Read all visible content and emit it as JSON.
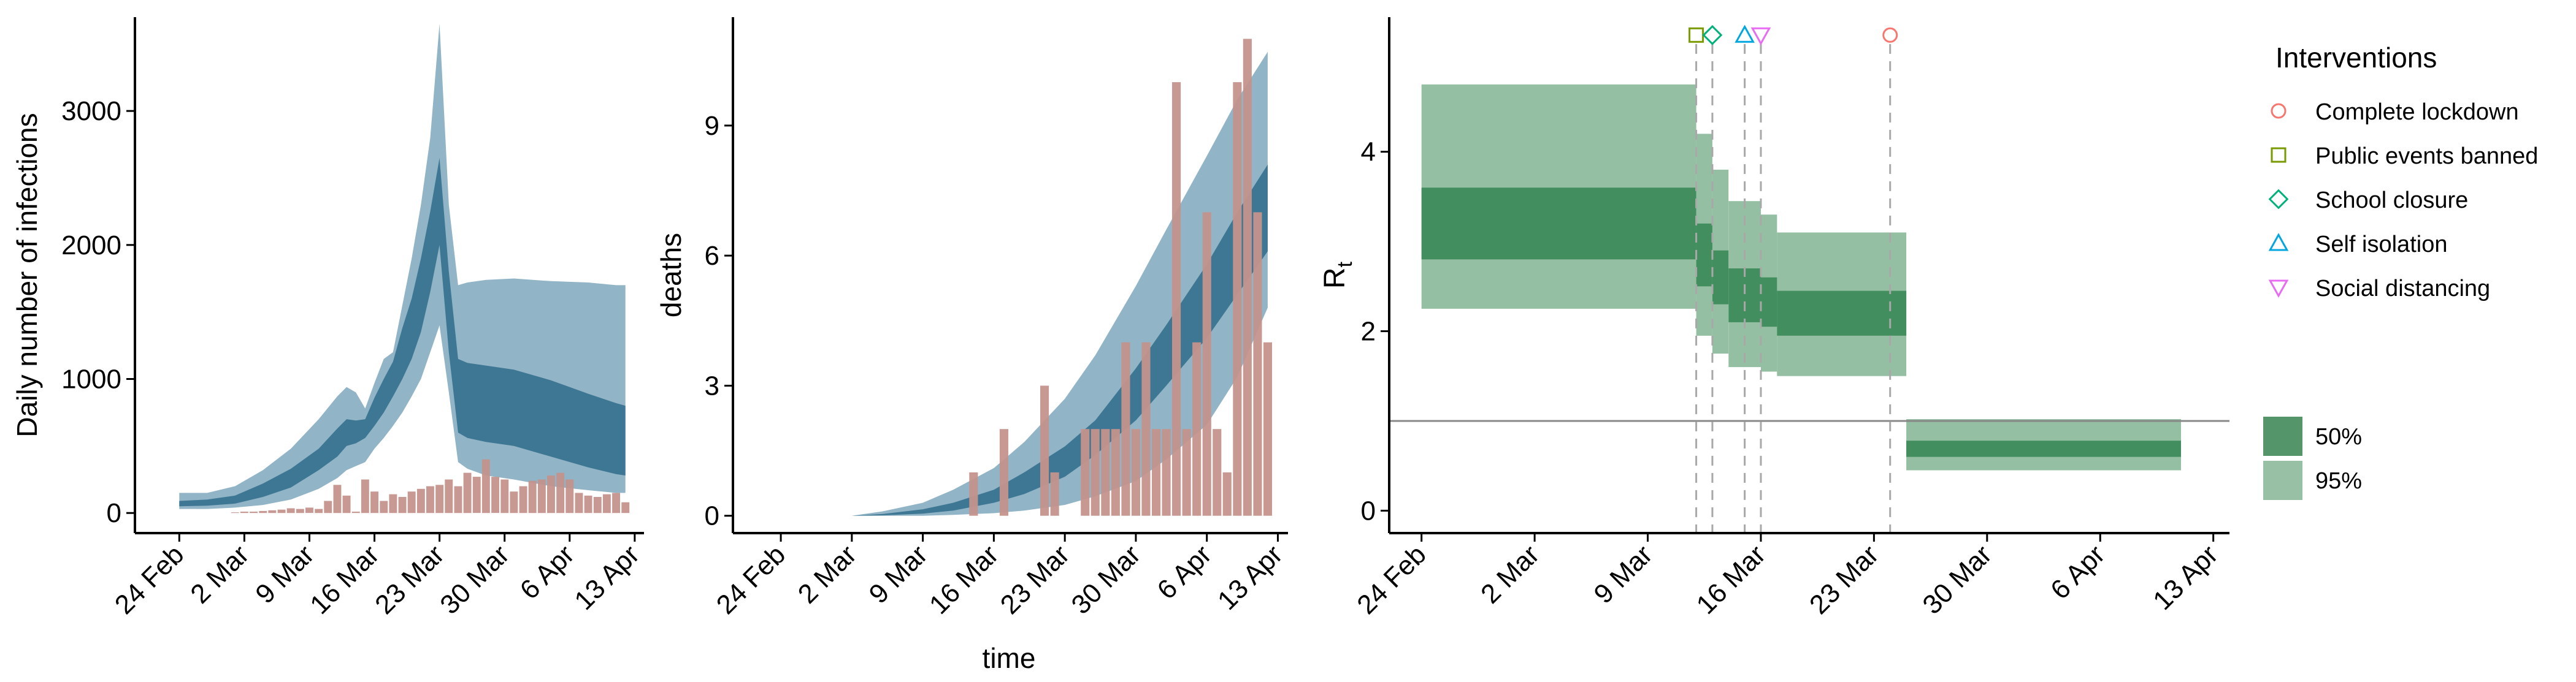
{
  "chart_data": [
    {
      "type": "area",
      "ylabel": "Daily number of infections",
      "xlim": [
        "2020-02-22",
        "2020-04-14"
      ],
      "ylim": [
        -150,
        3700
      ],
      "xticks": [
        {
          "date": "2020-02-24",
          "label": "24 Feb"
        },
        {
          "date": "2020-03-02",
          "label": "2 Mar"
        },
        {
          "date": "2020-03-09",
          "label": "9 Mar"
        },
        {
          "date": "2020-03-16",
          "label": "16 Mar"
        },
        {
          "date": "2020-03-23",
          "label": "23 Mar"
        },
        {
          "date": "2020-03-30",
          "label": "30 Mar"
        },
        {
          "date": "2020-04-06",
          "label": "6 Apr"
        },
        {
          "date": "2020-04-13",
          "label": "13 Apr"
        }
      ],
      "yticks": [
        0,
        1000,
        2000,
        3000
      ],
      "colors": {
        "band95": "#91b4c6",
        "band50": "#3e7794",
        "bars": "#c4938c"
      },
      "bars": {
        "x": [
          "2020-03-01",
          "2020-03-02",
          "2020-03-03",
          "2020-03-04",
          "2020-03-05",
          "2020-03-06",
          "2020-03-07",
          "2020-03-08",
          "2020-03-09",
          "2020-03-10",
          "2020-03-11",
          "2020-03-12",
          "2020-03-13",
          "2020-03-14",
          "2020-03-15",
          "2020-03-16",
          "2020-03-17",
          "2020-03-18",
          "2020-03-19",
          "2020-03-20",
          "2020-03-21",
          "2020-03-22",
          "2020-03-23",
          "2020-03-24",
          "2020-03-25",
          "2020-03-26",
          "2020-03-27",
          "2020-03-28",
          "2020-03-29",
          "2020-03-30",
          "2020-03-31",
          "2020-04-01",
          "2020-04-02",
          "2020-04-03",
          "2020-04-04",
          "2020-04-05",
          "2020-04-06",
          "2020-04-07",
          "2020-04-08",
          "2020-04-09",
          "2020-04-10",
          "2020-04-11",
          "2020-04-12"
        ],
        "values": [
          5,
          10,
          10,
          15,
          20,
          25,
          35,
          30,
          40,
          30,
          90,
          210,
          130,
          10,
          250,
          160,
          90,
          140,
          120,
          160,
          180,
          200,
          210,
          250,
          200,
          300,
          270,
          400,
          270,
          250,
          160,
          200,
          240,
          250,
          280,
          300,
          250,
          150,
          130,
          120,
          140,
          150,
          80
        ]
      },
      "series": [
        {
          "name": "95%",
          "x": [
            "2020-02-24",
            "2020-02-27",
            "2020-03-01",
            "2020-03-04",
            "2020-03-07",
            "2020-03-10",
            "2020-03-12",
            "2020-03-13",
            "2020-03-14",
            "2020-03-15",
            "2020-03-16",
            "2020-03-17",
            "2020-03-18",
            "2020-03-19",
            "2020-03-20",
            "2020-03-21",
            "2020-03-22",
            "2020-03-23",
            "2020-03-24",
            "2020-03-25",
            "2020-03-26",
            "2020-03-28",
            "2020-03-31",
            "2020-04-04",
            "2020-04-08",
            "2020-04-11",
            "2020-04-12"
          ],
          "low": [
            30,
            30,
            40,
            60,
            100,
            180,
            260,
            320,
            350,
            380,
            480,
            560,
            650,
            750,
            870,
            1000,
            1200,
            1400,
            900,
            380,
            330,
            280,
            250,
            200,
            170,
            150,
            150
          ],
          "high": [
            150,
            150,
            200,
            320,
            480,
            700,
            870,
            940,
            900,
            780,
            970,
            1150,
            1200,
            1550,
            1900,
            2300,
            2800,
            3650,
            2300,
            1700,
            1720,
            1740,
            1750,
            1730,
            1720,
            1700,
            1700
          ]
        },
        {
          "name": "50%",
          "x": [
            "2020-02-24",
            "2020-02-27",
            "2020-03-01",
            "2020-03-04",
            "2020-03-07",
            "2020-03-10",
            "2020-03-12",
            "2020-03-13",
            "2020-03-14",
            "2020-03-15",
            "2020-03-16",
            "2020-03-17",
            "2020-03-18",
            "2020-03-19",
            "2020-03-20",
            "2020-03-21",
            "2020-03-22",
            "2020-03-23",
            "2020-03-24",
            "2020-03-25",
            "2020-03-26",
            "2020-03-28",
            "2020-03-31",
            "2020-04-04",
            "2020-04-08",
            "2020-04-11",
            "2020-04-12"
          ],
          "low": [
            50,
            55,
            70,
            120,
            190,
            320,
            420,
            500,
            520,
            560,
            650,
            750,
            870,
            1000,
            1150,
            1350,
            1650,
            2000,
            1200,
            600,
            560,
            530,
            500,
            420,
            340,
            290,
            280
          ],
          "high": [
            90,
            100,
            130,
            220,
            330,
            480,
            630,
            700,
            690,
            700,
            860,
            1000,
            1130,
            1380,
            1600,
            1900,
            2250,
            2650,
            1800,
            1150,
            1120,
            1100,
            1070,
            990,
            890,
            820,
            800
          ]
        }
      ]
    },
    {
      "type": "area",
      "xlabel": "time",
      "ylabel": "deaths",
      "xlim": [
        "2020-02-22",
        "2020-04-14"
      ],
      "ylim": [
        -0.4,
        11.5
      ],
      "xticks": [
        {
          "date": "2020-02-24",
          "label": "24 Feb"
        },
        {
          "date": "2020-03-02",
          "label": "2 Mar"
        },
        {
          "date": "2020-03-09",
          "label": "9 Mar"
        },
        {
          "date": "2020-03-16",
          "label": "16 Mar"
        },
        {
          "date": "2020-03-23",
          "label": "23 Mar"
        },
        {
          "date": "2020-03-30",
          "label": "30 Mar"
        },
        {
          "date": "2020-04-06",
          "label": "6 Apr"
        },
        {
          "date": "2020-04-13",
          "label": "13 Apr"
        }
      ],
      "yticks": [
        0,
        3,
        6,
        9
      ],
      "colors": {
        "band95": "#91b4c6",
        "band50": "#3e7794",
        "bars": "#c4938c"
      },
      "bars": {
        "x": [
          "2020-03-14",
          "2020-03-17",
          "2020-03-21",
          "2020-03-22",
          "2020-03-25",
          "2020-03-26",
          "2020-03-27",
          "2020-03-28",
          "2020-03-29",
          "2020-03-30",
          "2020-03-31",
          "2020-04-01",
          "2020-04-02",
          "2020-04-03",
          "2020-04-04",
          "2020-04-05",
          "2020-04-06",
          "2020-04-07",
          "2020-04-08",
          "2020-04-09",
          "2020-04-10",
          "2020-04-11",
          "2020-04-12"
        ],
        "values": [
          1,
          2,
          3,
          1,
          2,
          2,
          2,
          2,
          4,
          2,
          4,
          2,
          2,
          10,
          2,
          4,
          7,
          2,
          1,
          10,
          11,
          7,
          4
        ]
      },
      "series": [
        {
          "name": "95%",
          "x": [
            "2020-03-02",
            "2020-03-05",
            "2020-03-09",
            "2020-03-12",
            "2020-03-16",
            "2020-03-19",
            "2020-03-23",
            "2020-03-26",
            "2020-03-30",
            "2020-04-02",
            "2020-04-06",
            "2020-04-09",
            "2020-04-12"
          ],
          "low": [
            0,
            0,
            0,
            0.02,
            0.06,
            0.12,
            0.25,
            0.45,
            0.8,
            1.3,
            2.1,
            3.2,
            4.8
          ],
          "high": [
            0,
            0.1,
            0.3,
            0.6,
            1.1,
            1.7,
            2.7,
            3.7,
            5.3,
            6.6,
            8.3,
            9.6,
            10.7
          ]
        },
        {
          "name": "50%",
          "x": [
            "2020-03-02",
            "2020-03-05",
            "2020-03-09",
            "2020-03-12",
            "2020-03-16",
            "2020-03-19",
            "2020-03-23",
            "2020-03-26",
            "2020-03-30",
            "2020-04-02",
            "2020-04-06",
            "2020-04-09",
            "2020-04-12"
          ],
          "low": [
            0,
            0.01,
            0.05,
            0.12,
            0.3,
            0.5,
            0.9,
            1.4,
            2.2,
            3.0,
            4.1,
            5.1,
            6.1
          ],
          "high": [
            0,
            0.04,
            0.15,
            0.3,
            0.6,
            1.0,
            1.6,
            2.2,
            3.4,
            4.4,
            5.8,
            7.0,
            8.1
          ]
        }
      ]
    },
    {
      "type": "area",
      "ylabel": "R",
      "ylabel_subscript": "t",
      "xlim": [
        "2020-02-22",
        "2020-04-14"
      ],
      "ylim": [
        -0.25,
        5.5
      ],
      "xticks": [
        {
          "date": "2020-02-24",
          "label": "24 Feb"
        },
        {
          "date": "2020-03-02",
          "label": "2 Mar"
        },
        {
          "date": "2020-03-09",
          "label": "9 Mar"
        },
        {
          "date": "2020-03-16",
          "label": "16 Mar"
        },
        {
          "date": "2020-03-23",
          "label": "23 Mar"
        },
        {
          "date": "2020-03-30",
          "label": "30 Mar"
        },
        {
          "date": "2020-04-06",
          "label": "6 Apr"
        },
        {
          "date": "2020-04-13",
          "label": "13 Apr"
        }
      ],
      "yticks": [
        0,
        2,
        4
      ],
      "reference_line": 1,
      "colors": {
        "band95": "#95bfa2",
        "band50": "#438e5e"
      },
      "steps": [
        {
          "start": "2020-02-24",
          "end": "2020-03-12",
          "low95": 2.25,
          "high95": 4.75,
          "low50": 2.8,
          "high50": 3.6
        },
        {
          "start": "2020-03-12",
          "end": "2020-03-13",
          "low95": 1.95,
          "high95": 4.2,
          "low50": 2.5,
          "high50": 3.2
        },
        {
          "start": "2020-03-13",
          "end": "2020-03-14",
          "low95": 1.75,
          "high95": 3.8,
          "low50": 2.3,
          "high50": 2.9
        },
        {
          "start": "2020-03-14",
          "end": "2020-03-16",
          "low95": 1.6,
          "high95": 3.45,
          "low50": 2.1,
          "high50": 2.7
        },
        {
          "start": "2020-03-16",
          "end": "2020-03-17",
          "low95": 1.55,
          "high95": 3.3,
          "low50": 2.05,
          "high50": 2.6
        },
        {
          "start": "2020-03-17",
          "end": "2020-03-25",
          "low95": 1.5,
          "high95": 3.1,
          "low50": 1.95,
          "high50": 2.45
        },
        {
          "start": "2020-03-25",
          "end": "2020-04-11",
          "low95": 0.45,
          "high95": 1.02,
          "low50": 0.6,
          "high50": 0.78
        }
      ],
      "intervention_dates": [
        "2020-03-12",
        "2020-03-13",
        "2020-03-15",
        "2020-03-16",
        "2020-03-24"
      ],
      "markers": [
        {
          "date": "2020-03-12",
          "name": "Public events banned",
          "shape": "square",
          "color": "#7a9a01"
        },
        {
          "date": "2020-03-13",
          "name": "School closure",
          "shape": "diamond",
          "color": "#00b27a"
        },
        {
          "date": "2020-03-15",
          "name": "Self isolation",
          "shape": "triangle",
          "color": "#00a6e0"
        },
        {
          "date": "2020-03-16",
          "name": "Social distancing",
          "shape": "triangle-down",
          "color": "#e76bf3"
        },
        {
          "date": "2020-03-24",
          "name": "Complete lockdown",
          "shape": "circle",
          "color": "#f8766d"
        }
      ]
    }
  ],
  "legend": {
    "interventions": {
      "title": "Interventions",
      "items": [
        {
          "label": "Complete lockdown",
          "shape": "circle",
          "color": "#f8766d"
        },
        {
          "label": "Public events banned",
          "shape": "square",
          "color": "#7a9a01"
        },
        {
          "label": "School closure",
          "shape": "diamond",
          "color": "#00b27a"
        },
        {
          "label": "Self isolation",
          "shape": "triangle",
          "color": "#00a6e0"
        },
        {
          "label": "Social distancing",
          "shape": "triangle-down",
          "color": "#e76bf3"
        }
      ]
    },
    "intervals": [
      {
        "label": "50%",
        "color": "#55956a"
      },
      {
        "label": "95%",
        "color": "#97c0a4"
      }
    ]
  }
}
